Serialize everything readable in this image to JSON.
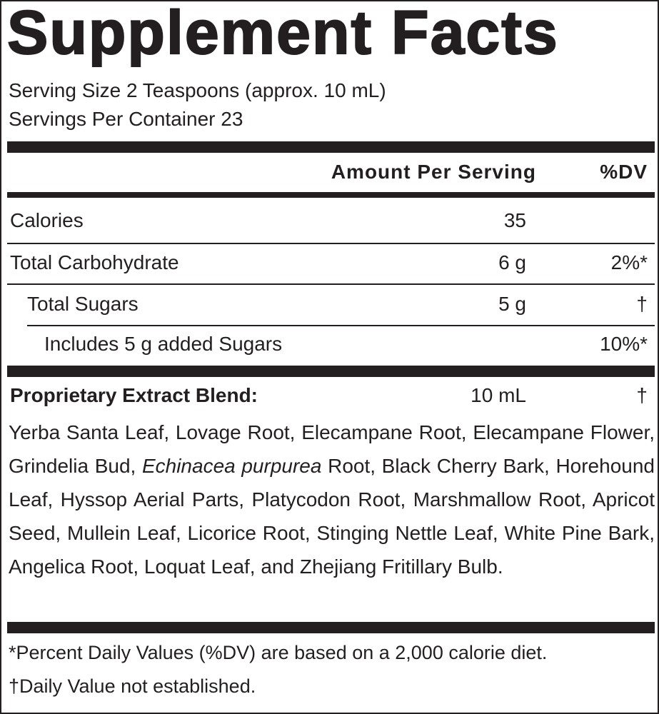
{
  "title": "Supplement Facts",
  "serving_size": "Serving Size 2 Teaspoons (approx. 10 mL)",
  "servings_per_container": "Servings Per Container 23",
  "table": {
    "header": {
      "amount": "Amount Per Serving",
      "dv": "%DV"
    },
    "rows": [
      {
        "label": "Calories",
        "amount": "35"
      },
      {
        "label": "Total Carbohydrate",
        "amount": "6 g",
        "dv": "2%*"
      },
      {
        "label": "Total Sugars",
        "amount": "5 g",
        "dv": "†"
      },
      {
        "label": "Includes 5 g added Sugars",
        "dv": "10%*"
      }
    ]
  },
  "blend": {
    "name": "Proprietary Extract Blend:",
    "amount": "10 mL",
    "dv": "†",
    "ingredients": [
      "Yerba Santa Leaf, Lovage Root, Elecampane Root, Elecampane Flower, Grindelia Bud, ",
      "Echinacea purpurea",
      " Root, Black Cherry Bark, Horehound Leaf, Hyssop Aerial Parts, Platycodon Root, Marshmallow Root, Apricot Seed, Mullein Leaf, Licorice Root, Stinging Nettle Leaf, White Pine Bark, Angelica Root, Loquat Leaf, and Zhejiang Fritillary Bulb."
    ]
  },
  "footnotes": [
    "*Percent Daily Values (%DV) are based on a 2,000 calorie diet.",
    "†Daily Value not established."
  ]
}
